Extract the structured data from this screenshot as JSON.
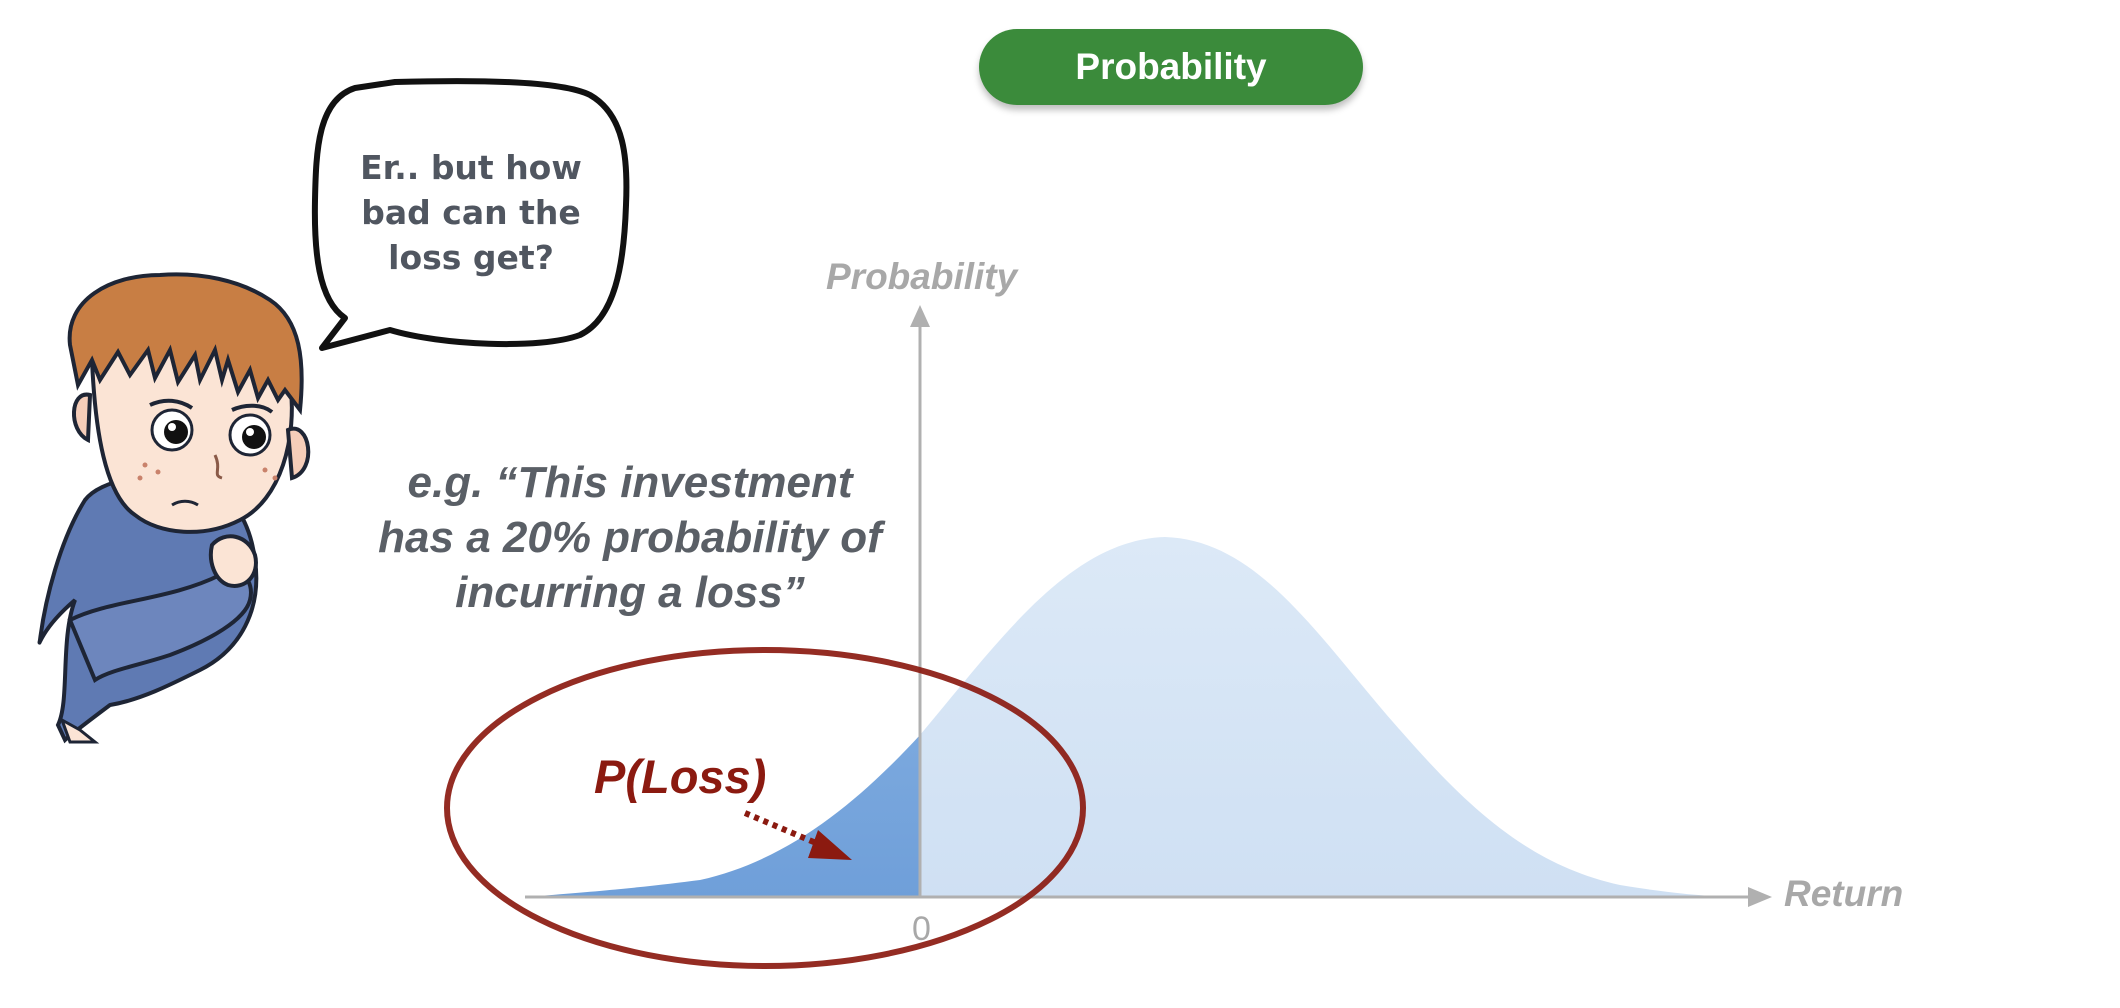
{
  "title_pill": "Probability",
  "speech_bubble": "Er.. but how bad can the loss get?",
  "quote": "e.g. “This investment has a 20% probability of incurring a loss”",
  "axes": {
    "y_label": "Probability",
    "x_label": "Return",
    "origin_label": "0"
  },
  "highlight_label": "P(Loss)",
  "colors": {
    "pill_green": "#3b8b3b",
    "loss_area": "#7eaadf",
    "gain_area": "#d5e5f6",
    "loss_ring": "#8b1a10",
    "axis": "#b0b0b0",
    "text_gray": "#5a5f66"
  }
}
